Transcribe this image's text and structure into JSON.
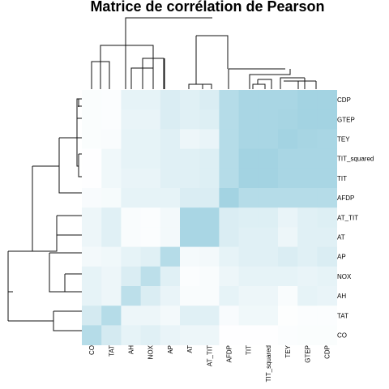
{
  "chart_data": {
    "type": "heatmap",
    "title": "Matrice de corrélation de Pearson",
    "row_labels": [
      "CDP",
      "GTEP",
      "TEY",
      "TIT_squared",
      "TIT",
      "AFDP",
      "AT_TIT",
      "AT",
      "AP",
      "NOX",
      "AH",
      "TAT",
      "CO"
    ],
    "col_labels": [
      "CO",
      "TAT",
      "AH",
      "NOX",
      "AP",
      "AT",
      "AT_TIT",
      "AFDP",
      "TIT",
      "TIT_squared",
      "TEY",
      "GTEP",
      "CDP"
    ],
    "values": [
      [
        0.04,
        0.03,
        0.2,
        0.2,
        0.3,
        0.25,
        0.3,
        0.6,
        0.7,
        0.7,
        0.7,
        0.75,
        0.75
      ],
      [
        0.04,
        0.03,
        0.18,
        0.18,
        0.3,
        0.25,
        0.28,
        0.6,
        0.7,
        0.7,
        0.72,
        0.75,
        0.75
      ],
      [
        0.04,
        0.05,
        0.2,
        0.2,
        0.25,
        0.15,
        0.18,
        0.6,
        0.7,
        0.7,
        0.75,
        0.72,
        0.7
      ],
      [
        0.01,
        0.12,
        0.2,
        0.2,
        0.25,
        0.25,
        0.28,
        0.6,
        0.75,
        0.75,
        0.7,
        0.7,
        0.7
      ],
      [
        0.01,
        0.12,
        0.18,
        0.18,
        0.25,
        0.25,
        0.28,
        0.6,
        0.75,
        0.75,
        0.7,
        0.7,
        0.7
      ],
      [
        0.06,
        0.07,
        0.2,
        0.2,
        0.2,
        0.3,
        0.3,
        0.75,
        0.6,
        0.6,
        0.6,
        0.6,
        0.6
      ],
      [
        0.15,
        0.25,
        0.05,
        0.03,
        0.1,
        0.7,
        0.7,
        0.3,
        0.28,
        0.28,
        0.18,
        0.25,
        0.28
      ],
      [
        0.15,
        0.25,
        0.05,
        0.03,
        0.1,
        0.7,
        0.7,
        0.3,
        0.25,
        0.25,
        0.15,
        0.25,
        0.25
      ],
      [
        0.1,
        0.12,
        0.2,
        0.25,
        0.6,
        0.08,
        0.1,
        0.2,
        0.25,
        0.25,
        0.3,
        0.25,
        0.3
      ],
      [
        0.2,
        0.15,
        0.3,
        0.55,
        0.25,
        0.03,
        0.05,
        0.15,
        0.2,
        0.2,
        0.2,
        0.18,
        0.2
      ],
      [
        0.2,
        0.15,
        0.55,
        0.3,
        0.18,
        0.05,
        0.05,
        0.2,
        0.15,
        0.15,
        0.05,
        0.2,
        0.18
      ],
      [
        0.35,
        0.6,
        0.15,
        0.15,
        0.1,
        0.25,
        0.25,
        0.06,
        0.12,
        0.12,
        0.02,
        0.03,
        0.03
      ],
      [
        0.6,
        0.35,
        0.2,
        0.25,
        0.18,
        0.15,
        0.15,
        0.01,
        0.01,
        0.01,
        0.03,
        0.04,
        0.04
      ]
    ],
    "colorscale": [
      "#ffffff",
      "#a3d3e2"
    ],
    "grid": false
  }
}
